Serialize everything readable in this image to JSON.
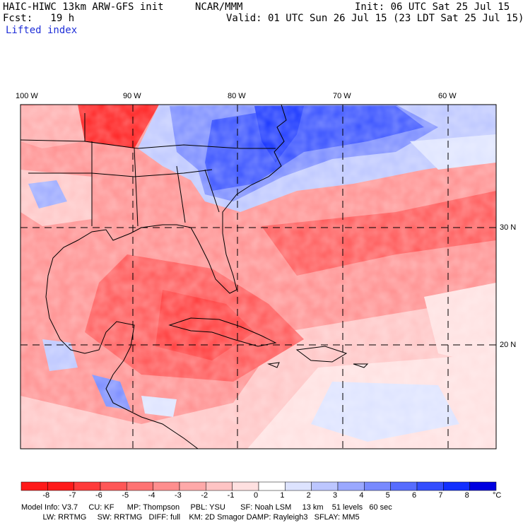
{
  "header": {
    "model": "HAIC-HIWC 13km ARW-GFS init",
    "center": "NCAR/MMM",
    "init": "Init: 06 UTC Sat 25 Jul 15",
    "fcst": "Fcst:   19 h",
    "valid": "Valid: 01 UTC Sun 26 Jul 15 (23 LDT Sat 25 Jul 15)",
    "field": "Lifted index"
  },
  "map": {
    "lon_labels": [
      "100 W",
      "90 W",
      "80 W",
      "70 W",
      "60 W"
    ],
    "lat_labels": [
      "30 N",
      "20 N"
    ]
  },
  "colorbar": {
    "ticks": [
      "-8",
      "-7",
      "-6",
      "-5",
      "-4",
      "-3",
      "-2",
      "-1",
      "0",
      "1",
      "2",
      "3",
      "4",
      "5",
      "6",
      "7",
      "8"
    ],
    "unit": "°C",
    "colors": [
      "#ff1a1a",
      "#ff3a3a",
      "#ff5757",
      "#ff7373",
      "#ff8e8e",
      "#ffa9a9",
      "#ffc4c4",
      "#ffe0e0",
      "#ffffff",
      "#dde3ff",
      "#bcc6ff",
      "#9aa8ff",
      "#788aff",
      "#566cff",
      "#344eff",
      "#1230ff",
      "#0000e0"
    ]
  },
  "footer": {
    "line1": "Model Info: V3.7     CU: KF      MP: Thompson     PBL: YSU       SF: Noah LSM     13 km    51 levels   60 sec",
    "line2": "          LW: RRTMG     SW: RRTMG   DIFF: full    KM: 2D Smagor DAMP: Rayleigh3   SFLAY: MM5"
  }
}
